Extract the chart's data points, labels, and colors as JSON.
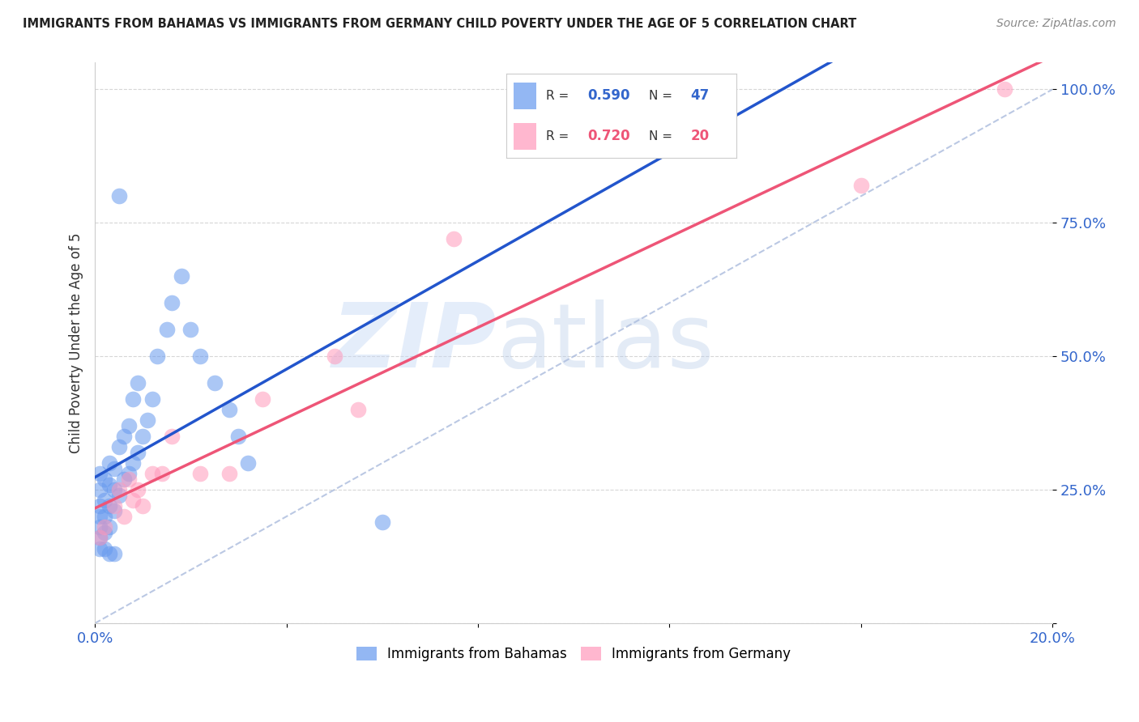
{
  "title": "IMMIGRANTS FROM BAHAMAS VS IMMIGRANTS FROM GERMANY CHILD POVERTY UNDER THE AGE OF 5 CORRELATION CHART",
  "source": "Source: ZipAtlas.com",
  "ylabel": "Child Poverty Under the Age of 5",
  "xlim": [
    0.0,
    0.2
  ],
  "ylim": [
    0.0,
    1.05
  ],
  "r_bahamas": 0.59,
  "n_bahamas": 47,
  "r_germany": 0.72,
  "n_germany": 20,
  "color_bahamas": "#6699ee",
  "color_germany": "#ff99bb",
  "color_reg_bahamas": "#2255cc",
  "color_reg_germany": "#ee5577",
  "color_diag": "#aabbdd",
  "legend_label_bahamas": "Immigrants from Bahamas",
  "legend_label_germany": "Immigrants from Germany",
  "watermark": "ZIPatlas",
  "bahamas_x": [
    0.001,
    0.001,
    0.001,
    0.001,
    0.001,
    0.001,
    0.002,
    0.002,
    0.002,
    0.002,
    0.003,
    0.003,
    0.003,
    0.003,
    0.004,
    0.004,
    0.004,
    0.005,
    0.005,
    0.006,
    0.006,
    0.007,
    0.007,
    0.008,
    0.008,
    0.009,
    0.009,
    0.01,
    0.011,
    0.012,
    0.013,
    0.015,
    0.016,
    0.018,
    0.02,
    0.022,
    0.025,
    0.028,
    0.03,
    0.032,
    0.001,
    0.002,
    0.003,
    0.004,
    0.005,
    0.06,
    0.12
  ],
  "bahamas_y": [
    0.16,
    0.18,
    0.2,
    0.22,
    0.25,
    0.28,
    0.17,
    0.2,
    0.23,
    0.27,
    0.18,
    0.22,
    0.26,
    0.3,
    0.21,
    0.25,
    0.29,
    0.24,
    0.33,
    0.27,
    0.35,
    0.28,
    0.37,
    0.3,
    0.42,
    0.32,
    0.45,
    0.35,
    0.38,
    0.42,
    0.5,
    0.55,
    0.6,
    0.65,
    0.55,
    0.5,
    0.45,
    0.4,
    0.35,
    0.3,
    0.14,
    0.14,
    0.13,
    0.13,
    0.8,
    0.19,
    0.93
  ],
  "germany_x": [
    0.001,
    0.002,
    0.004,
    0.005,
    0.006,
    0.007,
    0.008,
    0.009,
    0.01,
    0.012,
    0.014,
    0.016,
    0.022,
    0.028,
    0.035,
    0.05,
    0.055,
    0.075,
    0.16,
    0.19
  ],
  "germany_y": [
    0.16,
    0.18,
    0.22,
    0.25,
    0.2,
    0.27,
    0.23,
    0.25,
    0.22,
    0.28,
    0.28,
    0.35,
    0.28,
    0.28,
    0.42,
    0.5,
    0.4,
    0.72,
    0.82,
    1.0
  ]
}
